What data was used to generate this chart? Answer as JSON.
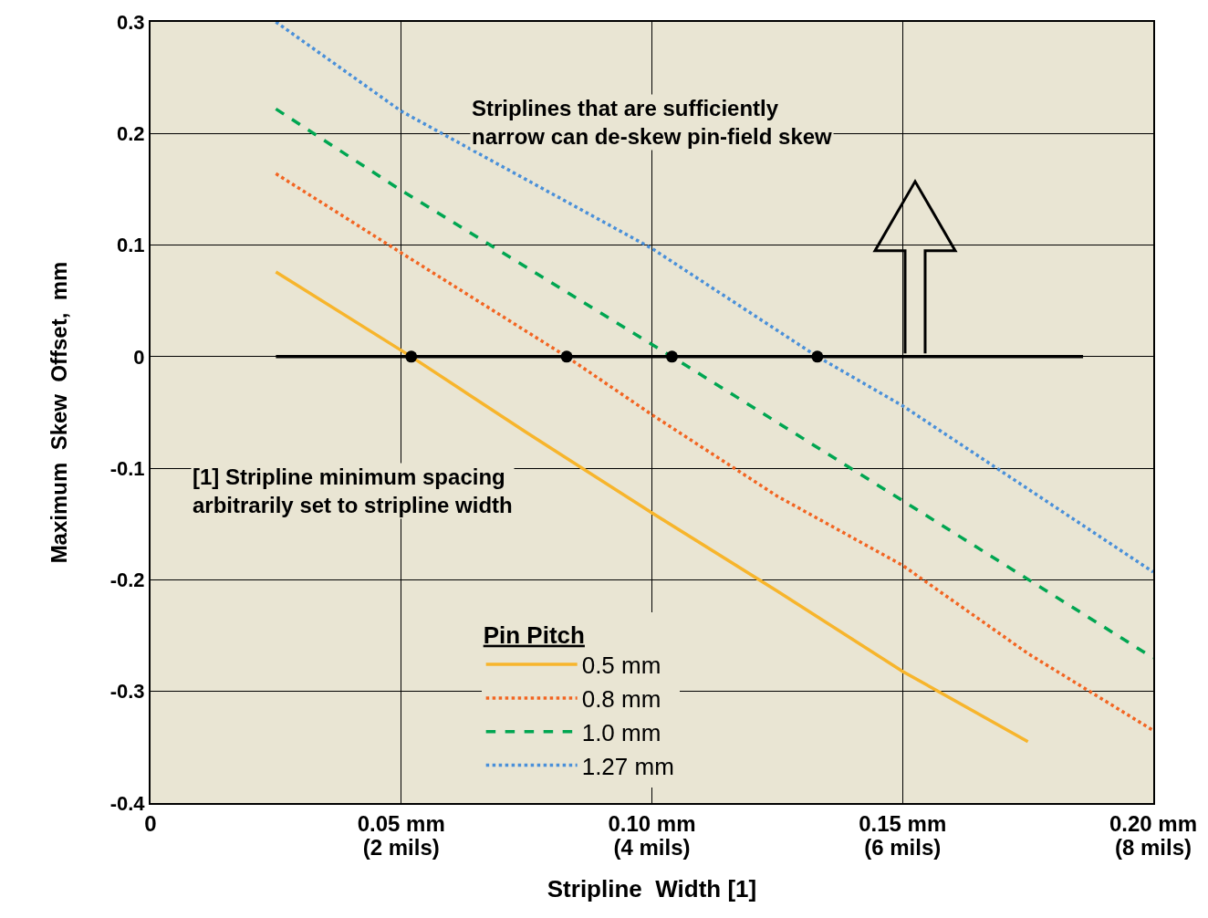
{
  "chart_data": {
    "type": "line",
    "xlabel": "Stripline  Width [1]",
    "ylabel": "Maximum  Skew  Offset,  mm",
    "legend_title": "Pin Pitch",
    "xlim": [
      0,
      0.2
    ],
    "ylim": [
      -0.4,
      0.3
    ],
    "xticks": [
      0,
      {
        "value": 0.05,
        "label": "0.05 mm"
      },
      {
        "value": 0.1,
        "label": "0.10 mm"
      },
      {
        "value": 0.15,
        "label": "0.15 mm"
      },
      {
        "value": 0.2,
        "label": "0.20 mm"
      }
    ],
    "x2lim": [
      0,
      8
    ],
    "x2ticks": [
      {
        "value": 2,
        "label": "(2 mils)"
      },
      {
        "value": 4,
        "label": "(4 mils)"
      },
      {
        "value": 6,
        "label": "(6 mils)"
      },
      {
        "value": 8,
        "label": "(8 mils)"
      }
    ],
    "yticks": [
      0.3,
      0.2,
      0.1,
      0,
      -0.1,
      -0.2,
      -0.3,
      -0.4
    ],
    "grid": true,
    "legend": "bottom",
    "series": [
      {
        "name": "0.5 mm",
        "color": "#f7b52c",
        "line_style": "solid",
        "x": [
          0.025,
          0.052,
          0.075,
          0.1,
          0.125,
          0.15,
          0.175
        ],
        "values": [
          0.076,
          0,
          -0.068,
          -0.14,
          -0.21,
          -0.282,
          -0.345
        ]
      },
      {
        "name": "0.8 mm",
        "color": "#f26522",
        "line_style": "dotted",
        "x": [
          0.025,
          0.05,
          0.083,
          0.1,
          0.125,
          0.15,
          0.175,
          0.2
        ],
        "values": [
          0.164,
          0.093,
          0,
          -0.052,
          -0.125,
          -0.187,
          -0.266,
          -0.335
        ]
      },
      {
        "name": "1.0 mm",
        "color": "#00a651",
        "line_style": "dashed",
        "x": [
          0.025,
          0.05,
          0.104,
          0.15,
          0.2
        ],
        "values": [
          0.222,
          0.149,
          0,
          -0.129,
          -0.27
        ]
      },
      {
        "name": "1.27 mm",
        "color": "#4a90d9",
        "line_style": "dotted",
        "x": [
          0.025,
          0.05,
          0.1,
          0.133,
          0.15,
          0.2
        ],
        "values": [
          0.3,
          0.22,
          0.097,
          0,
          -0.044,
          -0.193
        ]
      },
      {
        "color": "#000000",
        "line_style": "solid",
        "x": [
          0.025,
          0.186
        ],
        "values": [
          0,
          0
        ]
      },
      {
        "type": "scatter",
        "marker": "circle",
        "color": "#000000",
        "x": [
          0.052,
          0.083,
          0.104,
          0.133
        ],
        "values": [
          0,
          0,
          0,
          0
        ]
      }
    ],
    "annotations": [
      "Striplines that are sufficiently\nnarrow can de-skew pin-field skew",
      "[1] Stripline minimum spacing\narbitrarily set to stripline width"
    ]
  }
}
